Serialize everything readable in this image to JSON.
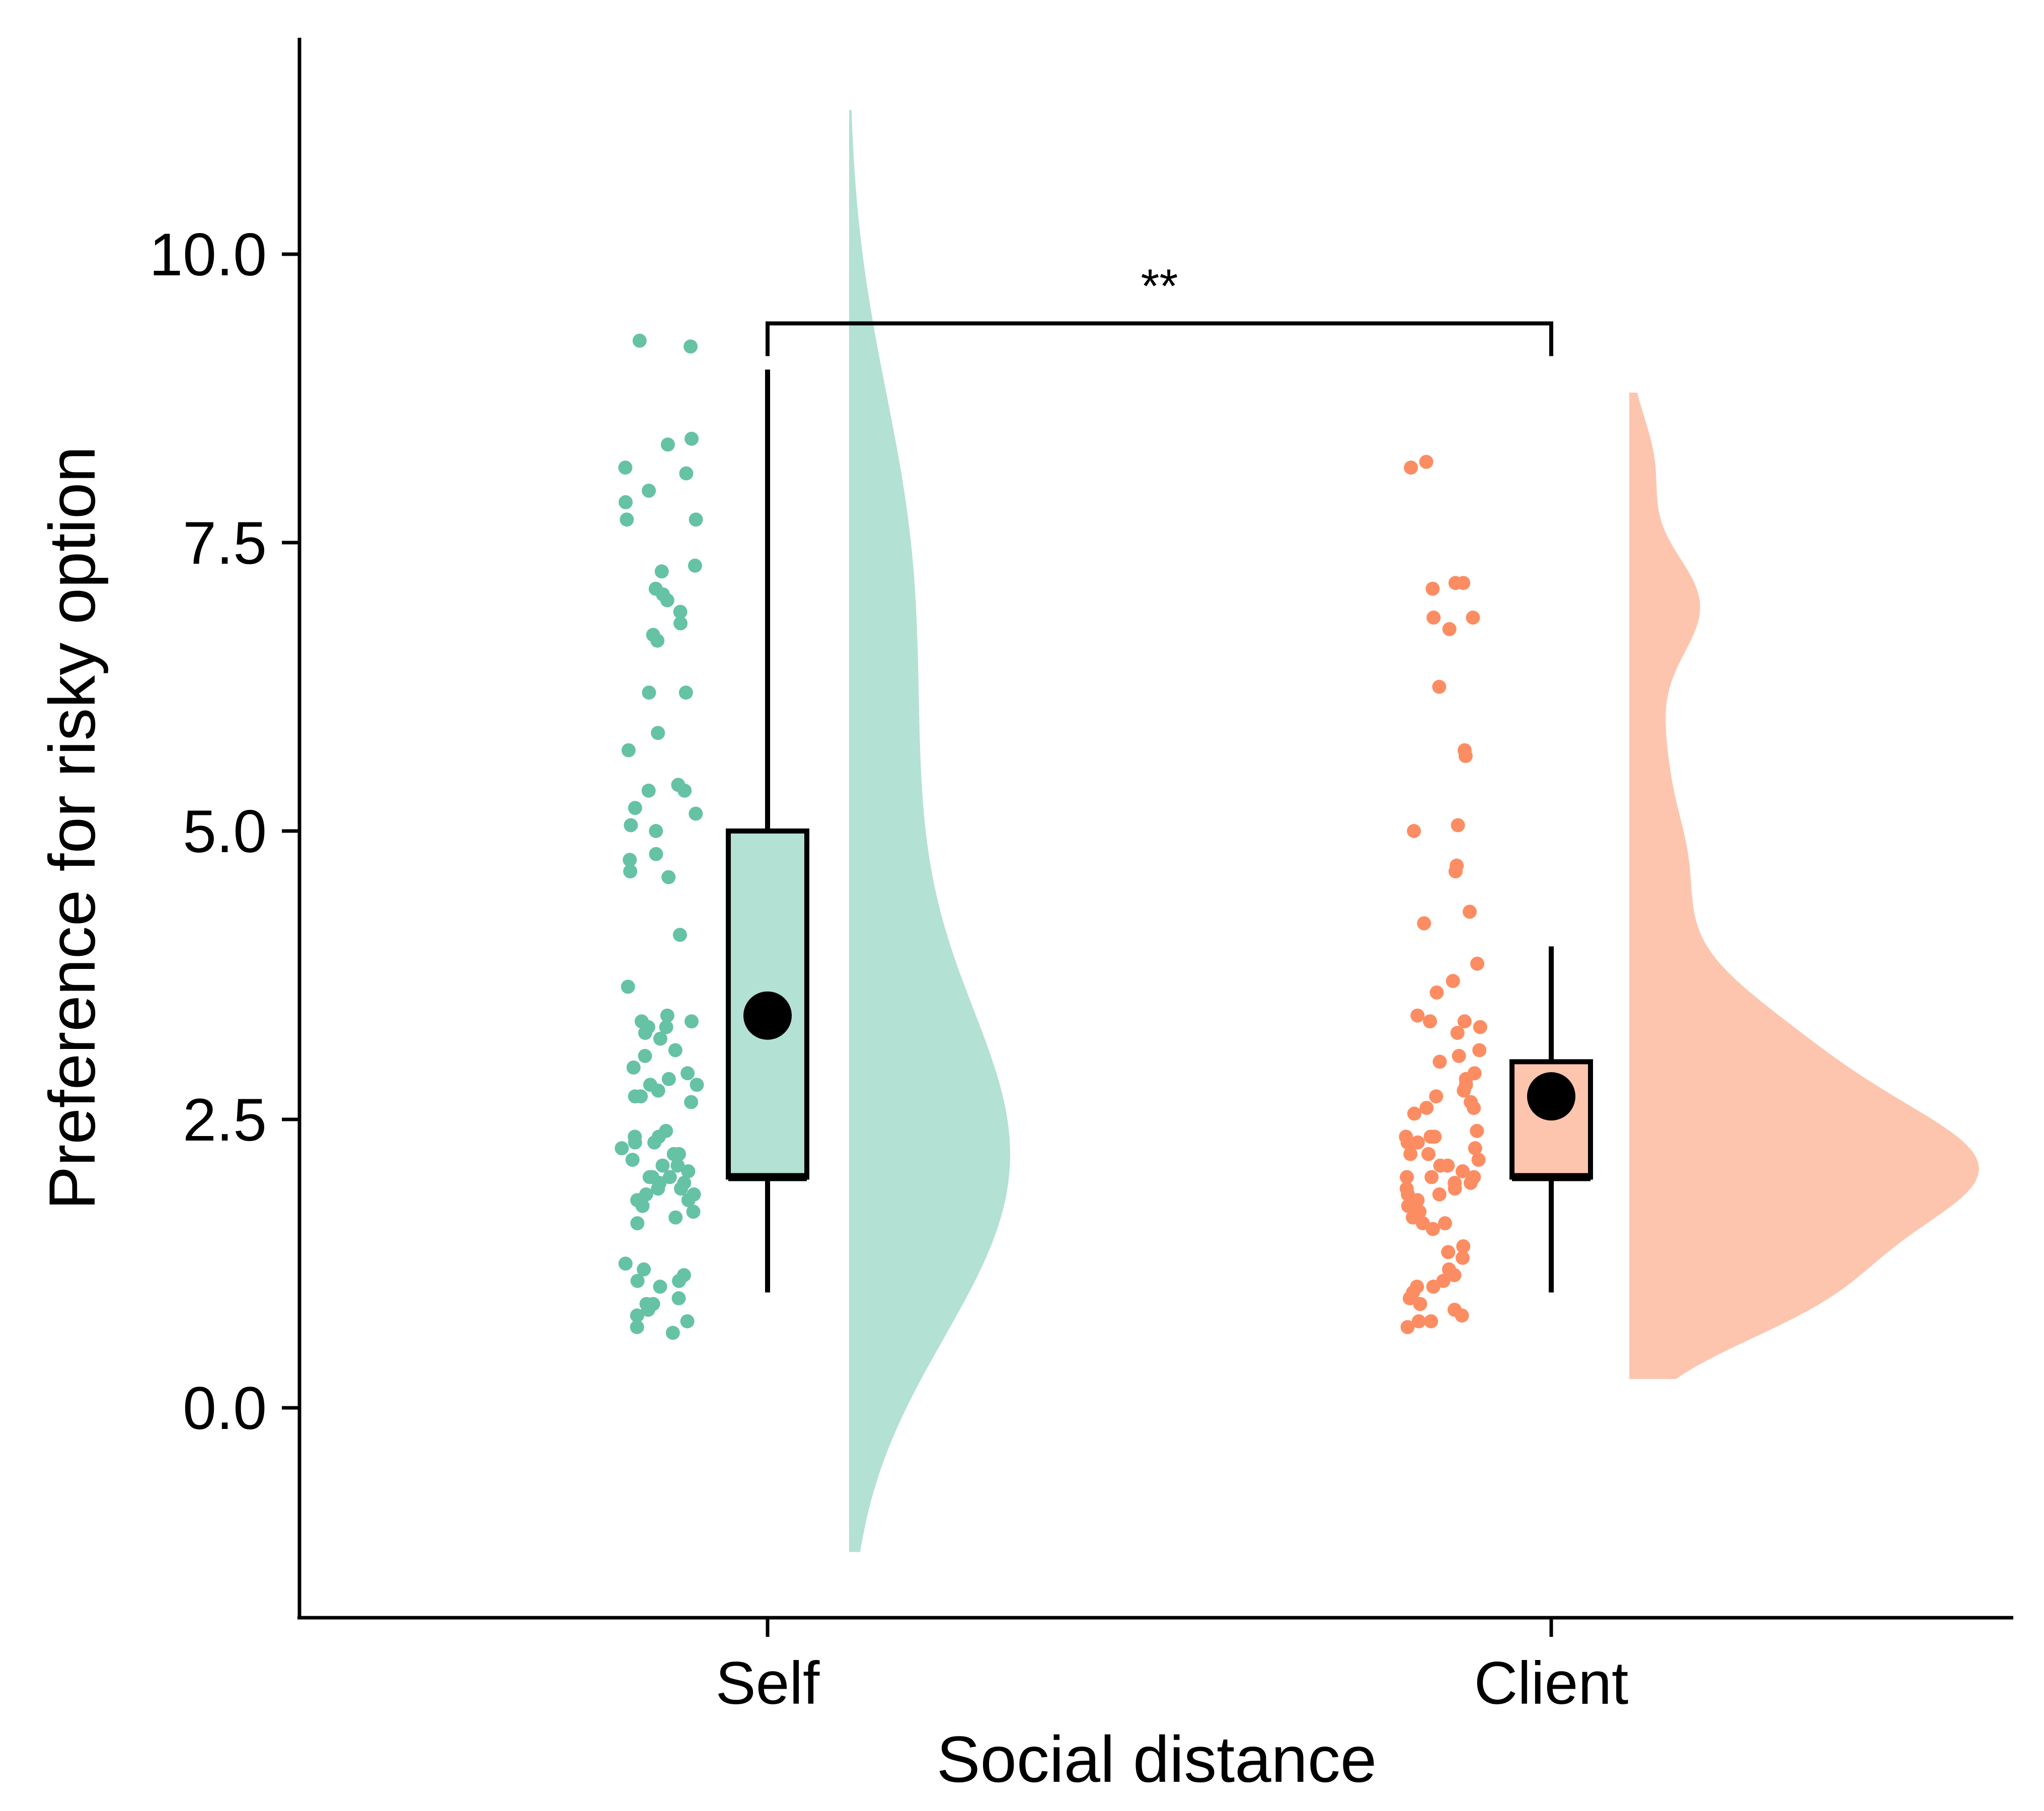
{
  "chart_data": {
    "type": "raincloud",
    "xlabel": "Social distance",
    "ylabel": "Preference for risky option",
    "ylim": [
      -1.85,
      11.9
    ],
    "yticks": [
      0.0,
      2.5,
      5.0,
      7.5,
      10.0
    ],
    "ytick_labels": [
      "0.0",
      "2.5",
      "5.0",
      "7.5",
      "10.0"
    ],
    "categories": [
      "Self",
      "Client"
    ],
    "grid": false,
    "legend": "none",
    "groups": [
      {
        "name": "Self",
        "color": "#66c2a5",
        "fill_color": "#b3e1d3",
        "box": {
          "min": 1.0,
          "q1": 2.0,
          "median": 2.0,
          "q3": 5.0,
          "max": 9.0
        },
        "mean": 3.4,
        "density_range": [
          -1.25,
          11.25
        ],
        "density_bandwidth": 1.2,
        "points": [
          9.25,
          9.2,
          8.35,
          8.4,
          8.15,
          8.1,
          7.95,
          7.85,
          7.7,
          7.7,
          7.3,
          7.25,
          7.1,
          7.05,
          7.0,
          6.9,
          6.8,
          6.7,
          6.65,
          6.2,
          6.2,
          5.85,
          5.7,
          5.4,
          5.35,
          5.35,
          5.2,
          5.15,
          5.05,
          5.0,
          4.8,
          4.75,
          4.65,
          4.6,
          4.1,
          3.65,
          3.4,
          3.35,
          3.35,
          3.3,
          3.3,
          3.25,
          3.2,
          3.1,
          3.05,
          2.95,
          2.9,
          2.85,
          2.8,
          2.8,
          2.75,
          2.7,
          2.7,
          2.65,
          2.4,
          2.35,
          2.35,
          2.3,
          2.3,
          2.25,
          2.2,
          2.2,
          2.15,
          2.1,
          2.1,
          2.05,
          2.0,
          2.0,
          2.0,
          1.95,
          1.95,
          1.9,
          1.9,
          1.85,
          1.85,
          1.8,
          1.8,
          1.75,
          1.7,
          1.65,
          1.6,
          1.25,
          1.2,
          1.15,
          1.1,
          1.1,
          1.05,
          0.95,
          0.9,
          0.9,
          0.85,
          0.8,
          0.75,
          0.7,
          0.65
        ]
      },
      {
        "name": "Client",
        "color": "#fc8d62",
        "fill_color": "#fdc5ae",
        "box": {
          "min": 1.0,
          "q1": 2.0,
          "median": 2.0,
          "q3": 3.0,
          "max": 4.0
        },
        "mean": 2.7,
        "density_range": [
          0.25,
          8.8
        ],
        "density_bandwidth": 0.42,
        "points": [
          8.2,
          8.15,
          7.15,
          7.15,
          7.1,
          6.85,
          6.85,
          6.75,
          6.25,
          5.7,
          5.65,
          5.05,
          5.0,
          4.7,
          4.65,
          4.3,
          4.2,
          3.85,
          3.7,
          3.6,
          3.4,
          3.35,
          3.35,
          3.3,
          3.25,
          3.1,
          3.05,
          3.0,
          2.9,
          2.85,
          2.8,
          2.75,
          2.7,
          2.65,
          2.6,
          2.6,
          2.55,
          2.4,
          2.35,
          2.35,
          2.35,
          2.3,
          2.3,
          2.25,
          2.2,
          2.2,
          2.15,
          2.1,
          2.1,
          2.05,
          2.0,
          2.0,
          2.0,
          1.95,
          1.95,
          1.9,
          1.9,
          1.85,
          1.85,
          1.8,
          1.75,
          1.7,
          1.65,
          1.6,
          1.6,
          1.55,
          1.4,
          1.35,
          1.3,
          1.2,
          1.15,
          1.1,
          1.05,
          1.05,
          1.0,
          0.95,
          0.9,
          0.85,
          0.8,
          0.75,
          0.75,
          0.7
        ]
      }
    ],
    "significance": {
      "label": "**",
      "between": [
        "Self",
        "Client"
      ],
      "y": 9.4
    }
  }
}
